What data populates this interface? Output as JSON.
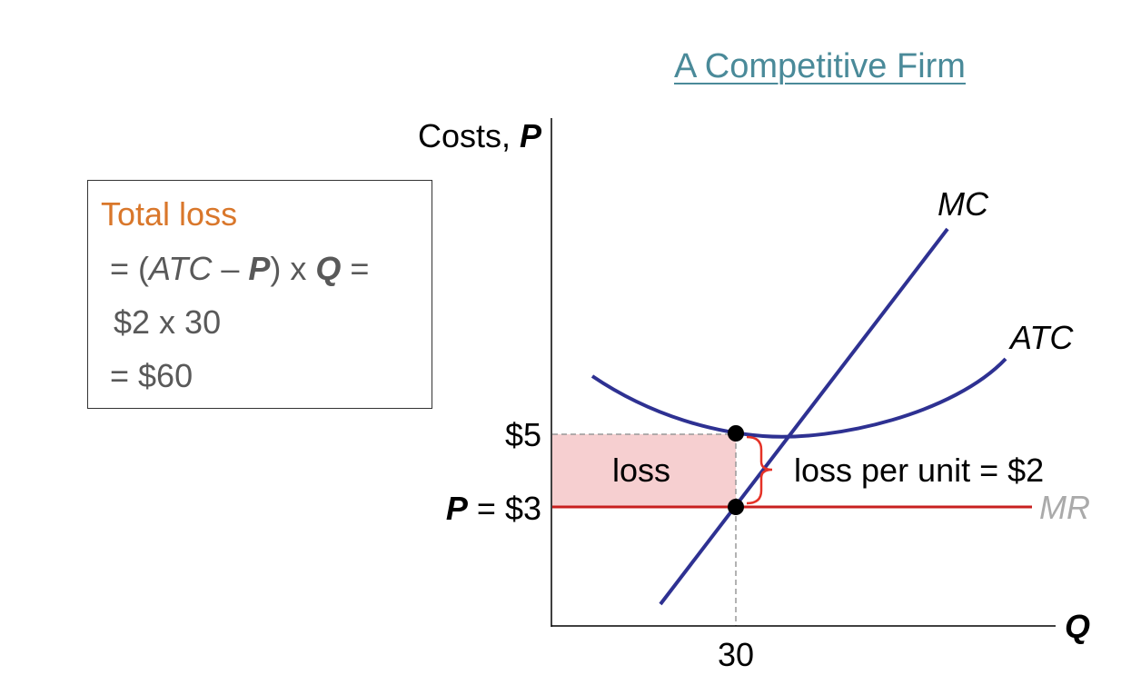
{
  "title": "A Competitive Firm",
  "formula": {
    "heading": "Total loss",
    "line1_prefix": "= (",
    "line1_atc": "ATC",
    "line1_minus": " – ",
    "line1_p": "P",
    "line1_mid": ") x ",
    "line1_q": "Q",
    "line1_suffix": " =",
    "line2": "$2 x 30",
    "line3": "= $60"
  },
  "axes": {
    "y_label_prefix": "Costs, ",
    "y_label_var": "P",
    "x_label": "Q",
    "x_tick": "30",
    "y_tick_atc": "$5",
    "y_tick_price_var": "P",
    "y_tick_price_value": " = $3"
  },
  "curves": {
    "mc_label": "MC",
    "atc_label": "ATC",
    "mr_label": "MR"
  },
  "annotations": {
    "loss_area_label": "loss",
    "loss_per_unit": "loss per unit = $2"
  },
  "colors": {
    "curve_blue": "#2e3192",
    "price_red": "#c8201f",
    "loss_fill": "#f6cfd0",
    "title_teal": "#4a8a99",
    "heading_orange": "#d9772b",
    "mr_gray": "#aaaaaa"
  }
}
